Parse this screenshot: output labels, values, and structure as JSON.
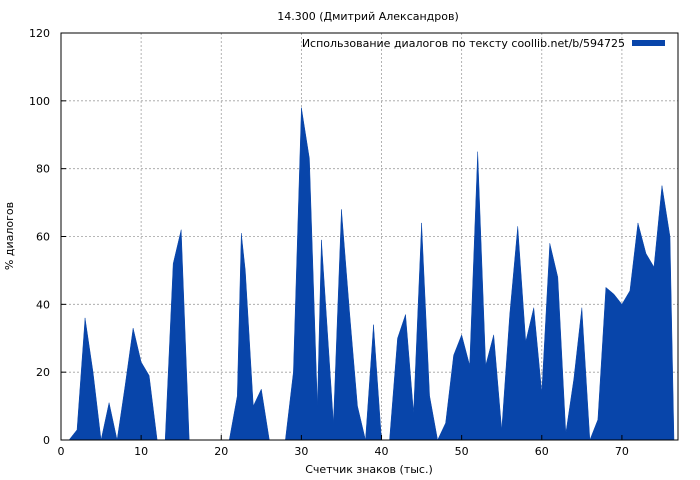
{
  "chart_data": {
    "type": "area",
    "title": "14.300 (Дмитрий Александров)",
    "xlabel": "Счетчик знаков (тыс.)",
    "ylabel": "% диалогов",
    "xlim": [
      0,
      77
    ],
    "ylim": [
      0,
      120
    ],
    "xticks": [
      0,
      10,
      20,
      30,
      40,
      50,
      60,
      70
    ],
    "yticks": [
      0,
      20,
      40,
      60,
      80,
      100,
      120
    ],
    "grid": true,
    "legend_position": "top-right",
    "series": [
      {
        "name": "Использование диалогов по тексту coollib.net/b/594725",
        "color": "#0845aa",
        "x": [
          1,
          2,
          3,
          4,
          5,
          6,
          7,
          8,
          9,
          10,
          11,
          12,
          13,
          14,
          15,
          16,
          17,
          18,
          19,
          20,
          21,
          22,
          22.5,
          23,
          24,
          25,
          26,
          27,
          28,
          29,
          30,
          31,
          32,
          32.5,
          33,
          34,
          35,
          36,
          37,
          38,
          39,
          40,
          41,
          42,
          43,
          44,
          45,
          46,
          47,
          48,
          49,
          50,
          51,
          52,
          53,
          54,
          55,
          56,
          57,
          58,
          59,
          60,
          61,
          62,
          63,
          64,
          65,
          66,
          67,
          68,
          69,
          70,
          71,
          72,
          73,
          74,
          75,
          76,
          76.5
        ],
        "values": [
          0,
          3,
          36,
          20,
          0,
          11,
          0,
          16,
          33,
          23,
          19,
          0,
          0,
          52,
          62,
          0,
          0,
          0,
          0,
          0,
          0,
          13,
          61,
          50,
          10,
          15,
          0,
          0,
          0,
          20,
          98,
          83,
          10,
          59,
          41,
          5,
          68,
          38,
          10,
          0,
          34,
          0,
          0,
          30,
          37,
          8,
          64,
          13,
          0,
          5,
          25,
          31,
          22,
          85,
          22,
          31,
          3,
          37,
          63,
          29,
          39,
          14,
          58,
          48,
          2,
          18,
          39,
          0,
          6,
          45,
          43,
          40,
          44,
          64,
          55,
          51,
          75,
          60,
          0
        ]
      }
    ]
  }
}
